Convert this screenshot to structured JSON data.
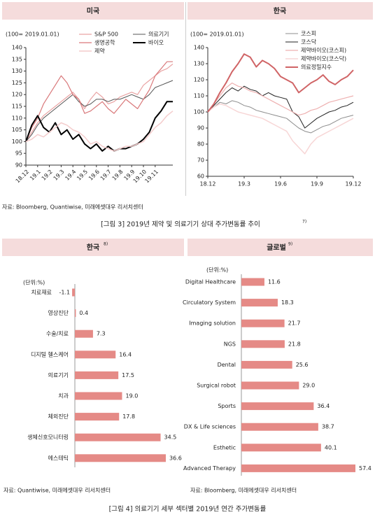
{
  "chart_data": [
    {
      "type": "line",
      "header": "미국",
      "unit": "(100= 2019.01.01)",
      "x": [
        "18.12",
        null,
        "19.1",
        null,
        "19.2",
        null,
        "19.3",
        null,
        "19.4",
        null,
        "19.5",
        null,
        "19.6",
        null,
        "19.7",
        null,
        "19.8",
        null,
        "19.9",
        null,
        "19.10",
        null,
        "19.11",
        null,
        null,
        null
      ],
      "ylim": [
        90,
        140
      ],
      "yticks": [
        90,
        95,
        100,
        105,
        110,
        115,
        120,
        125,
        130,
        135,
        140
      ],
      "series": [
        {
          "name": "S&P 500",
          "color": "#e9a3a3",
          "line_width": 1.2,
          "values": [
            100,
            104,
            108,
            111,
            113,
            115,
            117,
            119,
            121,
            118,
            114,
            118,
            121,
            119,
            116,
            117,
            119,
            120,
            121,
            120,
            124,
            126,
            128,
            130,
            131,
            133
          ]
        },
        {
          "name": "의료기기",
          "color": "#555555",
          "line_width": 1,
          "values": [
            100,
            103,
            107,
            110,
            112,
            114,
            116,
            118,
            120,
            117,
            115,
            116,
            118,
            118,
            117,
            118,
            118,
            119,
            120,
            119,
            118,
            120,
            123,
            124,
            125,
            126
          ]
        },
        {
          "name": "생명공학",
          "color": "#d9787a",
          "line_width": 1.2,
          "values": [
            100,
            106,
            110,
            116,
            120,
            124,
            128,
            125,
            120,
            118,
            112,
            113,
            115,
            117,
            114,
            112,
            115,
            118,
            116,
            114,
            118,
            122,
            128,
            131,
            134,
            134
          ]
        },
        {
          "name": "바이오",
          "color": "#000000",
          "line_width": 2,
          "values": [
            100,
            107,
            111,
            106,
            104,
            108,
            103,
            105,
            101,
            103,
            99,
            97,
            99,
            96,
            98,
            96,
            97,
            97,
            98,
            99,
            101,
            104,
            110,
            113,
            117,
            117
          ]
        },
        {
          "name": "제약",
          "color": "#f4cccc",
          "line_width": 1.5,
          "values": [
            100,
            101,
            103,
            102,
            104,
            106,
            108,
            107,
            105,
            104,
            102,
            99,
            100,
            98,
            97,
            96,
            97,
            98,
            98,
            99,
            100,
            103,
            106,
            108,
            111,
            113
          ]
        }
      ]
    },
    {
      "type": "line",
      "header": "한국",
      "unit": "(100= 2019.01.01)",
      "x": [
        "18.12",
        null,
        null,
        null,
        null,
        null,
        "19.3",
        null,
        null,
        null,
        null,
        null,
        "19.6",
        null,
        null,
        null,
        null,
        null,
        "19.9",
        null,
        null,
        null,
        null,
        null,
        "19.12"
      ],
      "ylim": [
        60,
        140
      ],
      "yticks": [
        60,
        70,
        80,
        90,
        100,
        110,
        120,
        130,
        140
      ],
      "series": [
        {
          "name": "코스피",
          "color": "#8c8c8c",
          "line_width": 1,
          "values": [
            100,
            103,
            106,
            105,
            107,
            106,
            104,
            103,
            101,
            100,
            99,
            98,
            97,
            96,
            93,
            90,
            88,
            87,
            89,
            91,
            92,
            94,
            96,
            97,
            98
          ]
        },
        {
          "name": "코스닥",
          "color": "#222222",
          "line_width": 1,
          "values": [
            100,
            104,
            108,
            112,
            115,
            113,
            116,
            114,
            113,
            110,
            112,
            110,
            109,
            108,
            100,
            97,
            90,
            93,
            96,
            98,
            100,
            101,
            103,
            104,
            106
          ]
        },
        {
          "name": "제약바이오(코스피)",
          "color": "#eeb0b0",
          "line_width": 1.2,
          "values": [
            100,
            105,
            110,
            115,
            118,
            116,
            115,
            113,
            112,
            110,
            108,
            106,
            104,
            102,
            100,
            98,
            99,
            101,
            102,
            104,
            106,
            107,
            108,
            109,
            110
          ]
        },
        {
          "name": "제약바이오(코스닥)",
          "color": "#f7d6d6",
          "line_width": 1.5,
          "values": [
            100,
            103,
            105,
            104,
            102,
            100,
            99,
            98,
            97,
            96,
            94,
            92,
            90,
            88,
            82,
            78,
            74,
            80,
            84,
            86,
            88,
            90,
            92,
            94,
            96
          ]
        },
        {
          "name": "의료정밀지수",
          "color": "#d06466",
          "line_width": 2,
          "values": [
            100,
            105,
            112,
            118,
            125,
            130,
            136,
            134,
            128,
            132,
            130,
            127,
            122,
            120,
            118,
            112,
            115,
            118,
            120,
            123,
            119,
            117,
            120,
            122,
            126
          ]
        }
      ]
    },
    {
      "type": "bar",
      "orientation": "horizontal",
      "header": "한국",
      "header_note": "8)",
      "unit": "(단위:%)",
      "color": "#e58a86",
      "categories": [
        "치료재료",
        "영상진단",
        "수술/치료",
        "디지털 헬스케어",
        "의료기기",
        "치과",
        "체외진단",
        "생체신호모니터링",
        "에스테틱"
      ],
      "values": [
        -1.1,
        0.4,
        7.3,
        16.4,
        17.5,
        19.0,
        17.8,
        34.5,
        36.6
      ],
      "value_labels": [
        "-1.1",
        "0.4",
        "7.3",
        "16.4",
        "17.5",
        "19.0",
        "17.8",
        "34.5",
        "36.6"
      ],
      "source": "자료: Quantiwise, 미래에셋대우 리서치센터"
    },
    {
      "type": "bar",
      "orientation": "horizontal",
      "header": "글로벌",
      "header_note": "9)",
      "unit": "(단위:%)",
      "color": "#e58a86",
      "categories": [
        "Digital Healthcare",
        "Circulatory System",
        "Imaging solution",
        "NGS",
        "Dental",
        "Surgical robot",
        "Sports",
        "DX & Life sciences",
        "Esthetic",
        "Advanced Therapy"
      ],
      "values": [
        11.6,
        18.3,
        21.7,
        21.8,
        25.6,
        29.0,
        36.4,
        38.7,
        40.1,
        57.4
      ],
      "value_labels": [
        "11.6",
        "18.3",
        "21.7",
        "21.8",
        "25.6",
        "29.0",
        "36.4",
        "38.7",
        "40.1",
        "57.4"
      ],
      "source": "자료: Bloomberg, 미래에셋대우 리서치센터"
    }
  ],
  "figure3": {
    "source": "자료: Bloomberg, Quantiwise, 미래에셋대우 리서치센터",
    "caption": "[그림 3] 2019년 제약 및 의료기기 상대 주가변동률 추이",
    "caption_note": "7)"
  },
  "figure4": {
    "caption": "[그림 4] 의료기기 세부 섹터별 2019년 연간 주가변동률"
  }
}
